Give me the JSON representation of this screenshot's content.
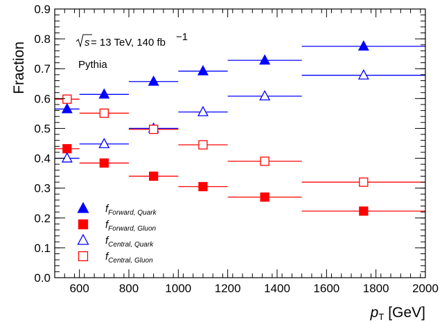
{
  "chart_data": {
    "type": "scatter",
    "title": "",
    "xlabel_main": "p",
    "xlabel_sub": "T",
    "xlabel_unit": "[GeV]",
    "ylabel": "Fraction",
    "xlim": [
      500,
      2000
    ],
    "ylim": [
      0,
      0.9
    ],
    "x_ticks": [
      "600",
      "800",
      "1000",
      "1200",
      "1400",
      "1600",
      "1800",
      "2000"
    ],
    "y_ticks": [
      "0.0",
      "0.1",
      "0.2",
      "0.3",
      "0.4",
      "0.5",
      "0.6",
      "0.7",
      "0.8",
      "0.9"
    ],
    "annotations": {
      "energy_prefix": "s",
      "energy_text": " = 13 TeV, 140 fb",
      "energy_sup": "−1",
      "generator": "Pythia"
    },
    "bins": [
      {
        "lo": 500,
        "hi": 600,
        "x": 550
      },
      {
        "lo": 600,
        "hi": 800,
        "x": 700
      },
      {
        "lo": 800,
        "hi": 1000,
        "x": 900
      },
      {
        "lo": 1000,
        "hi": 1200,
        "x": 1100
      },
      {
        "lo": 1200,
        "hi": 1500,
        "x": 1350
      },
      {
        "lo": 1500,
        "hi": 2000,
        "x": 1750
      }
    ],
    "series": [
      {
        "name": "Forward, Quark",
        "f": "f",
        "marker": "triangle",
        "filled": true,
        "color": "#0000ff",
        "values": [
          0.565,
          0.614,
          0.657,
          0.692,
          0.728,
          0.775
        ]
      },
      {
        "name": "Forward, Gluon",
        "f": "f",
        "marker": "square",
        "filled": true,
        "color": "#ff0000",
        "values": [
          0.432,
          0.384,
          0.34,
          0.305,
          0.27,
          0.223
        ]
      },
      {
        "name": "Central, Quark",
        "f": "f",
        "marker": "triangle",
        "filled": false,
        "color": "#0000ff",
        "values": [
          0.4,
          0.448,
          0.5,
          0.555,
          0.608,
          0.678
        ]
      },
      {
        "name": "Central, Gluon",
        "f": "f",
        "marker": "square",
        "filled": false,
        "color": "#ff0000",
        "values": [
          0.598,
          0.551,
          0.497,
          0.445,
          0.39,
          0.32
        ]
      }
    ]
  }
}
